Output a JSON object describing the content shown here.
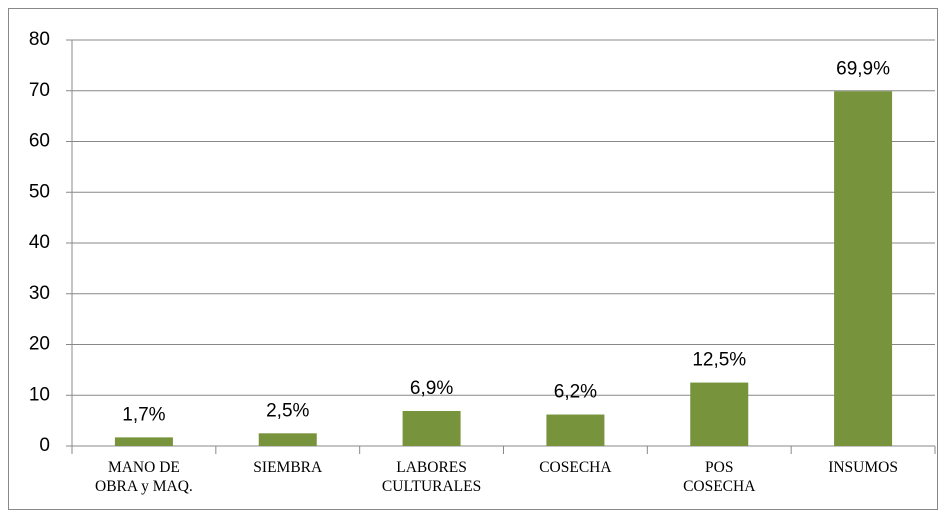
{
  "chart_data": {
    "type": "bar",
    "categories": [
      "MANO DE\nOBRA y MAQ.",
      "SIEMBRA",
      "LABORES\nCULTURALES",
      "COSECHA",
      "POS\nCOSECHA",
      "INSUMOS"
    ],
    "values": [
      1.7,
      2.5,
      6.9,
      6.2,
      12.5,
      69.9
    ],
    "value_labels": [
      "1,7%",
      "2,5%",
      "6,9%",
      "6,2%",
      "12,5%",
      "69,9%"
    ],
    "color": "#77933c",
    "ylim": [
      0,
      80
    ],
    "yticks": [
      0,
      10,
      20,
      30,
      40,
      50,
      60,
      70,
      80
    ],
    "grid": true
  }
}
